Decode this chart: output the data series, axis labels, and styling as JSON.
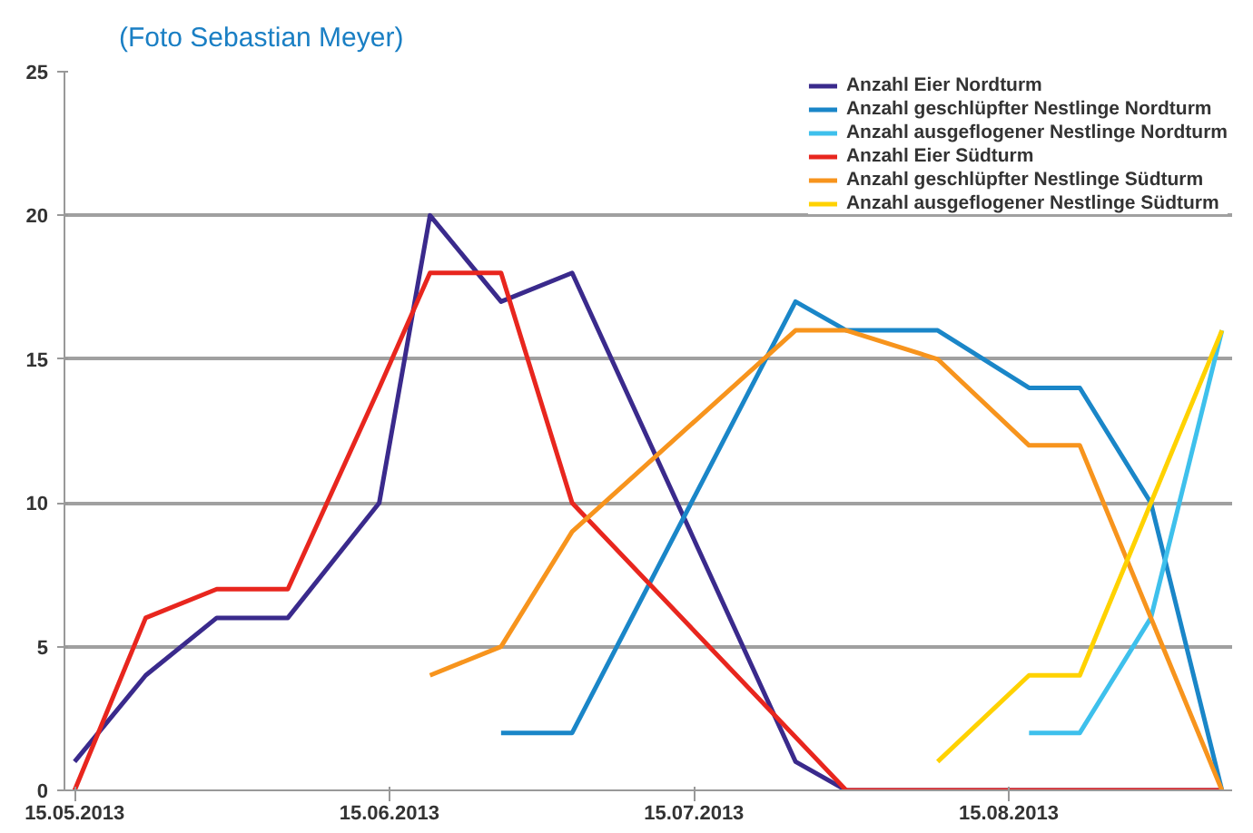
{
  "chart_data": {
    "type": "line",
    "annotations": [
      "(Foto Sebastian Meyer)"
    ],
    "xlim": [
      "2013-05-14",
      "2013-09-06"
    ],
    "xticks": [
      {
        "value": "2013-05-15",
        "label": "15.05.2013"
      },
      {
        "value": "2013-06-15",
        "label": "15.06.2013"
      },
      {
        "value": "2013-07-15",
        "label": "15.07.2013"
      },
      {
        "value": "2013-08-15",
        "label": "15.08.2013"
      }
    ],
    "ylim": [
      0,
      25
    ],
    "yticks": [
      0,
      5,
      10,
      15,
      20,
      25
    ],
    "grid": "y",
    "legend": "top right",
    "marker": "none",
    "line_style": "solid",
    "series": [
      {
        "name": "Anzahl Eier Nordturm",
        "color": "#3a2a8c",
        "x": [
          "2013-05-15",
          "2013-05-22",
          "2013-05-29",
          "2013-06-05",
          "2013-06-14",
          "2013-06-19",
          "2013-06-26",
          "2013-07-03",
          "2013-07-25",
          "2013-07-30",
          "2013-08-08",
          "2013-08-17",
          "2013-08-22",
          "2013-08-29",
          "2013-09-05"
        ],
        "values": [
          1,
          4,
          6,
          6,
          10,
          20,
          17,
          18,
          1,
          0,
          0,
          0,
          0,
          0,
          0
        ]
      },
      {
        "name": "Anzahl geschlüpfter Nestlinge Nordturm",
        "color": "#1a86c8",
        "x": [
          "2013-06-26",
          "2013-07-03",
          "2013-07-25",
          "2013-07-30",
          "2013-08-08",
          "2013-08-17",
          "2013-08-22",
          "2013-08-29",
          "2013-09-05"
        ],
        "values": [
          2,
          2,
          17,
          16,
          16,
          14,
          14,
          10,
          0
        ]
      },
      {
        "name": "Anzahl ausgeflogener Nestlinge Nordturm",
        "color": "#3ec0ec",
        "x": [
          "2013-08-17",
          "2013-08-22",
          "2013-08-29",
          "2013-09-05"
        ],
        "values": [
          2,
          2,
          6,
          16
        ]
      },
      {
        "name": "Anzahl Eier Südturm",
        "color": "#e8261e",
        "x": [
          "2013-05-15",
          "2013-05-22",
          "2013-05-29",
          "2013-06-05",
          "2013-06-14",
          "2013-06-19",
          "2013-06-26",
          "2013-07-03",
          "2013-07-30",
          "2013-08-08",
          "2013-08-17",
          "2013-08-22",
          "2013-08-29",
          "2013-09-05"
        ],
        "values": [
          0,
          6,
          7,
          7,
          14,
          18,
          18,
          10,
          0,
          0,
          0,
          0,
          0,
          0
        ]
      },
      {
        "name": "Anzahl geschlüpfter Nestlinge Südturm",
        "color": "#f7941d",
        "x": [
          "2013-06-19",
          "2013-06-26",
          "2013-07-03",
          "2013-07-25",
          "2013-07-30",
          "2013-08-08",
          "2013-08-17",
          "2013-08-22",
          "2013-09-05"
        ],
        "values": [
          4,
          5,
          9,
          16,
          16,
          15,
          12,
          12,
          0
        ]
      },
      {
        "name": "Anzahl ausgeflogener Nestlinge Südturm",
        "color": "#ffd200",
        "x": [
          "2013-08-08",
          "2013-08-17",
          "2013-08-22",
          "2013-08-29",
          "2013-09-05"
        ],
        "values": [
          1,
          4,
          4,
          10,
          16
        ]
      }
    ]
  }
}
